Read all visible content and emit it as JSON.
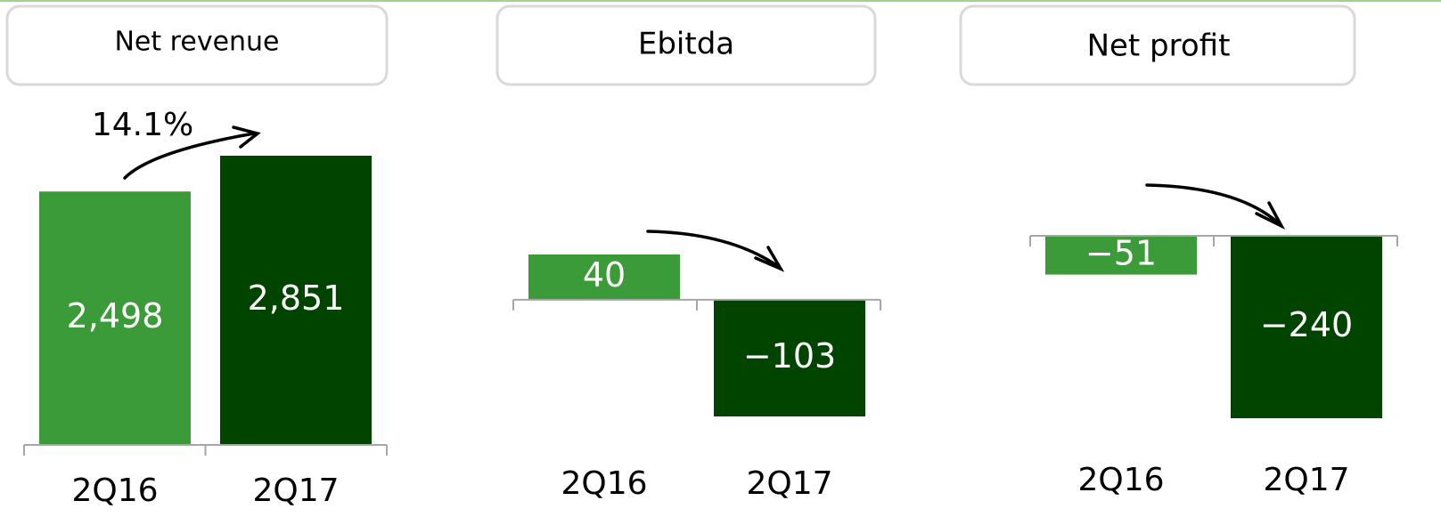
{
  "chart_data": [
    {
      "type": "bar",
      "title": "Net revenue",
      "categories": [
        "2Q16",
        "2Q17"
      ],
      "values": [
        2498,
        2851
      ],
      "value_labels": [
        "2,498",
        "2,851"
      ],
      "colors": [
        "#3a9b38",
        "#004400"
      ],
      "annotations": [
        "14.1%"
      ]
    },
    {
      "type": "bar",
      "title": "Ebitda",
      "categories": [
        "2Q16",
        "2Q17"
      ],
      "values": [
        40,
        -103
      ],
      "value_labels": [
        "40",
        "−103"
      ],
      "colors": [
        "#3a9b38",
        "#004400"
      ]
    },
    {
      "type": "bar",
      "title": "Net profit",
      "categories": [
        "2Q16",
        "2Q17"
      ],
      "values": [
        -51,
        -240
      ],
      "value_labels": [
        "−51",
        "−240"
      ],
      "colors": [
        "#3a9b38",
        "#004400"
      ]
    }
  ]
}
